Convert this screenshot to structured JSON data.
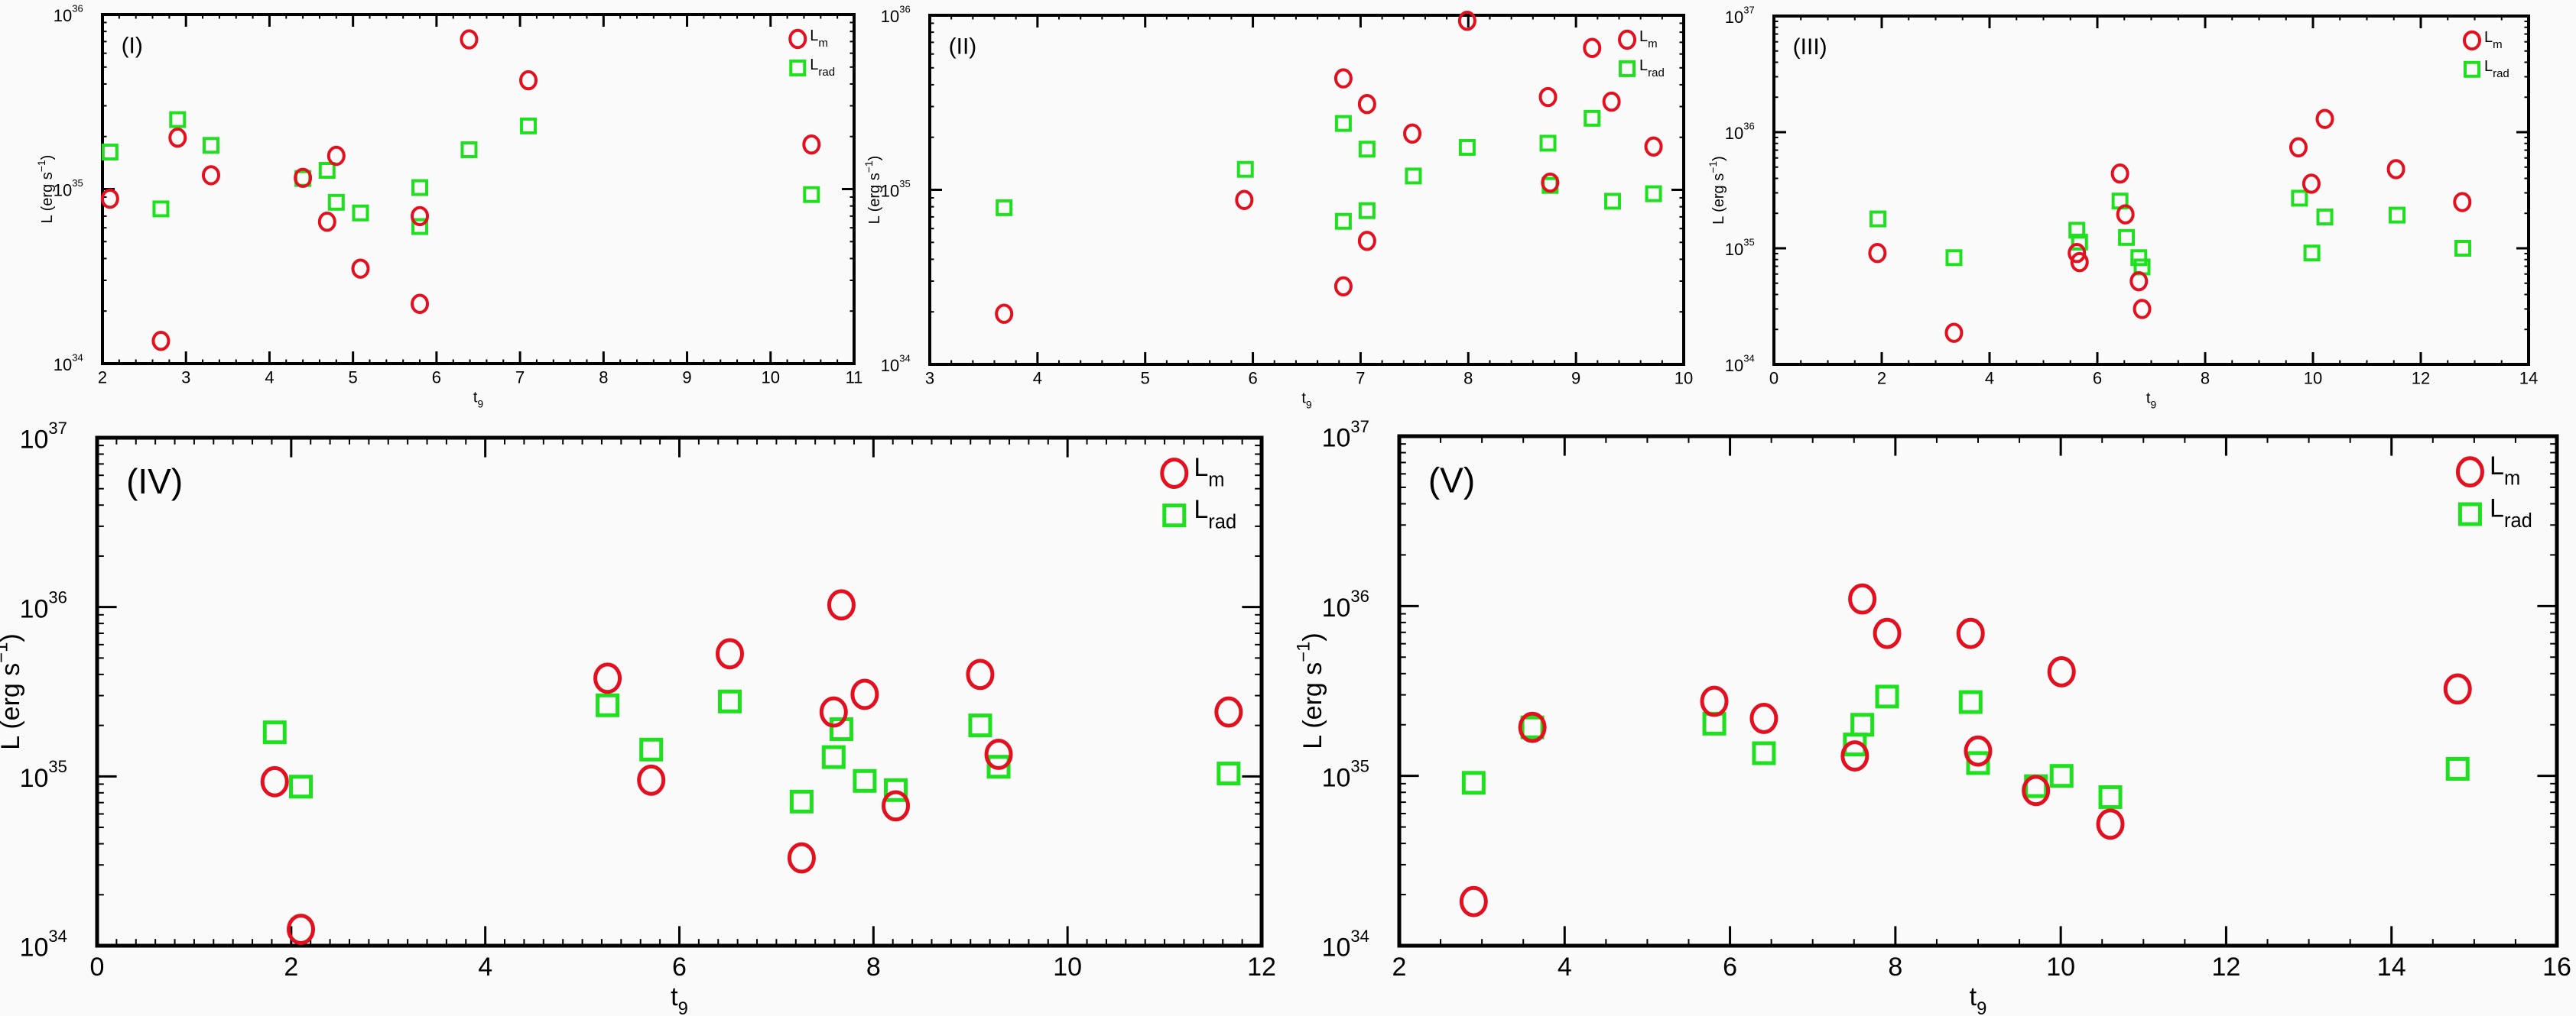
{
  "colors": {
    "Lm": "#e3101f",
    "Lrad": "#1fe01f",
    "axis": "#000000",
    "background": "#fafafa"
  },
  "chart_data": [
    {
      "type": "scatter",
      "panel_label": "(I)",
      "xlabel": "t",
      "xlabel_sub": "9",
      "ylabel": {
        "text": "L (erg s",
        "sup": "−1",
        "tail": ")"
      },
      "xlim": [
        2,
        11
      ],
      "xticks": [
        2,
        3,
        4,
        5,
        6,
        7,
        8,
        9,
        10,
        11
      ],
      "xminor": 0.2,
      "ylim_exp": [
        34,
        36
      ],
      "yscale": "log",
      "ytick_base": "10",
      "ytick_exps": [
        34,
        35,
        36
      ],
      "legend_position": "top-right",
      "series": [
        {
          "name": "L",
          "name_sub": "m",
          "marker": "circle",
          "x": [
            2.09,
            2.7,
            2.9,
            3.3,
            4.4,
            4.69,
            4.8,
            5.09,
            5.8,
            5.8,
            6.39,
            7.1,
            10.49
          ],
          "y": [
            8.8e+34,
            1.35e+34,
            1.97e+35,
            1.2e+35,
            1.16e+35,
            6.5e+34,
            1.55e+35,
            3.5e+34,
            7e+34,
            2.2e+34,
            7.2e+35,
            4.2e+35,
            1.8e+35
          ]
        },
        {
          "name": "L",
          "name_sub": "rad",
          "marker": "square",
          "x": [
            2.09,
            2.7,
            2.9,
            3.3,
            4.4,
            4.69,
            4.8,
            5.09,
            5.8,
            5.8,
            6.39,
            7.1,
            10.49
          ],
          "y": [
            1.63e+35,
            7.7e+34,
            2.5e+35,
            1.78e+35,
            1.15e+35,
            1.28e+35,
            8.4e+34,
            7.3e+34,
            1.02e+35,
            6.1e+34,
            1.68e+35,
            2.3e+35,
            9.3e+34
          ]
        }
      ]
    },
    {
      "type": "scatter",
      "panel_label": "(II)",
      "xlabel": "t",
      "xlabel_sub": "9",
      "ylabel": {
        "text": "L (erg s",
        "sup": "−1",
        "tail": ")"
      },
      "xlim": [
        3,
        10
      ],
      "xticks": [
        3,
        4,
        5,
        6,
        7,
        8,
        9,
        10
      ],
      "xminor": 0.2,
      "ylim_exp": [
        34,
        36
      ],
      "yscale": "log",
      "ytick_base": "10",
      "ytick_exps": [
        34,
        35,
        36
      ],
      "legend_position": "top-right",
      "series": [
        {
          "name": "L",
          "name_sub": "m",
          "marker": "circle",
          "x": [
            3.69,
            5.92,
            6.84,
            6.84,
            7.06,
            7.06,
            7.48,
            7.99,
            8.74,
            8.76,
            9.15,
            9.33,
            9.72
          ],
          "y": [
            1.95e+34,
            8.75e+34,
            4.35e+35,
            2.8e+34,
            3.1e+35,
            5.1e+34,
            2.1e+35,
            9.3e+35,
            3.4e+35,
            1.1e+35,
            6.5e+35,
            3.2e+35,
            1.77e+35
          ]
        },
        {
          "name": "L",
          "name_sub": "rad",
          "marker": "square",
          "x": [
            3.69,
            5.93,
            6.84,
            6.84,
            7.06,
            7.06,
            7.49,
            7.99,
            8.74,
            8.76,
            9.15,
            9.34,
            9.72
          ],
          "y": [
            7.9e+34,
            1.31e+35,
            2.4e+35,
            6.6e+34,
            1.71e+35,
            7.6e+34,
            1.2e+35,
            1.75e+35,
            1.85e+35,
            1.06e+35,
            2.57e+35,
            8.6e+34,
            9.5e+34
          ]
        }
      ]
    },
    {
      "type": "scatter",
      "panel_label": "(III)",
      "xlabel": "t",
      "xlabel_sub": "9",
      "ylabel": {
        "text": "L (erg s",
        "sup": "−1",
        "tail": ")"
      },
      "xlim": [
        0,
        14
      ],
      "xticks": [
        0,
        2,
        4,
        6,
        8,
        10,
        12,
        14
      ],
      "xminor": 0.5,
      "ylim_exp": [
        34,
        37
      ],
      "yscale": "log",
      "ytick_base": "10",
      "ytick_exps": [
        34,
        35,
        36,
        37
      ],
      "legend_position": "top-right",
      "series": [
        {
          "name": "L",
          "name_sub": "m",
          "marker": "circle",
          "x": [
            1.92,
            3.34,
            5.62,
            5.67,
            6.42,
            6.52,
            6.77,
            6.83,
            9.73,
            9.97,
            10.22,
            11.54,
            12.77
          ],
          "y": [
            9.1e+34,
            1.87e+34,
            9.1e+34,
            7.6e+34,
            4.4e+35,
            1.96e+35,
            5.2e+34,
            3e+34,
            7.4e+35,
            3.6e+35,
            1.3e+36,
            4.8e+35,
            2.5e+35
          ]
        },
        {
          "name": "L",
          "name_sub": "rad",
          "marker": "square",
          "x": [
            1.93,
            3.34,
            5.62,
            5.67,
            6.42,
            6.54,
            6.77,
            6.83,
            9.75,
            9.98,
            10.22,
            11.56,
            12.78
          ],
          "y": [
            1.79e+35,
            8.3e+34,
            1.43e+35,
            1.13e+35,
            2.55e+35,
            1.24e+35,
            8.3e+34,
            6.9e+34,
            2.7e+35,
            9.1e+34,
            1.86e+35,
            1.93e+35,
            1e+35
          ]
        }
      ]
    },
    {
      "type": "scatter",
      "panel_label": "(IV)",
      "xlabel": "t",
      "xlabel_sub": "9",
      "ylabel": {
        "text": "L (erg s",
        "sup": "−1",
        "tail": ")"
      },
      "xlim": [
        0,
        12
      ],
      "xticks": [
        0,
        2,
        4,
        6,
        8,
        10,
        12
      ],
      "xminor": 0.2,
      "ylim_exp": [
        34,
        37
      ],
      "yscale": "log",
      "ytick_base": "10",
      "ytick_exps": [
        34,
        35,
        36,
        37
      ],
      "legend_position": "top-right",
      "series": [
        {
          "name": "L",
          "name_sub": "m",
          "marker": "circle",
          "x": [
            1.83,
            2.1,
            5.26,
            5.71,
            6.52,
            7.26,
            7.59,
            7.67,
            7.91,
            8.23,
            9.1,
            9.29,
            11.66
          ],
          "y": [
            9.3e+34,
            1.25e+34,
            3.8e+35,
            9.5e+34,
            5.3e+35,
            3.3e+34,
            2.4e+35,
            1.03e+36,
            3.05e+35,
            6.7e+34,
            4e+35,
            1.35e+35,
            2.4e+35
          ]
        },
        {
          "name": "L",
          "name_sub": "rad",
          "marker": "square",
          "x": [
            1.83,
            2.1,
            5.26,
            5.71,
            6.52,
            7.26,
            7.59,
            7.67,
            7.91,
            8.23,
            9.1,
            9.29,
            11.66
          ],
          "y": [
            1.82e+35,
            8.7e+34,
            2.63e+35,
            1.44e+35,
            2.77e+35,
            7.1e+34,
            1.3e+35,
            1.9e+35,
            9.4e+34,
            8.3e+34,
            2e+35,
            1.14e+35,
            1.04e+35
          ]
        }
      ]
    },
    {
      "type": "scatter",
      "panel_label": "(V)",
      "xlabel": "t",
      "xlabel_sub": "9",
      "ylabel": {
        "text": "L (erg s",
        "sup": "−1",
        "tail": ")"
      },
      "xlim": [
        2,
        16
      ],
      "xticks": [
        2,
        4,
        6,
        8,
        10,
        12,
        14,
        16
      ],
      "xminor": 0.5,
      "ylim_exp": [
        34,
        37
      ],
      "yscale": "log",
      "ytick_base": "10",
      "ytick_exps": [
        34,
        35,
        36,
        37
      ],
      "legend_position": "top-right",
      "series": [
        {
          "name": "L",
          "name_sub": "m",
          "marker": "circle",
          "x": [
            2.9,
            3.61,
            5.81,
            6.41,
            7.51,
            7.6,
            7.9,
            8.91,
            9.0,
            9.7,
            10.01,
            10.6,
            14.8
          ],
          "y": [
            1.82e+34,
            1.93e+35,
            2.75e+35,
            2.18e+35,
            1.31e+35,
            1.1e+36,
            6.9e+35,
            6.9e+35,
            1.4e+35,
            8.2e+34,
            4.1e+35,
            5.2e+34,
            3.25e+35
          ]
        },
        {
          "name": "L",
          "name_sub": "rad",
          "marker": "square",
          "x": [
            2.9,
            3.61,
            5.81,
            6.41,
            7.51,
            7.6,
            7.9,
            8.91,
            9.0,
            9.7,
            10.01,
            10.6,
            14.8
          ],
          "y": [
            9.1e+34,
            1.93e+35,
            2.03e+35,
            1.36e+35,
            1.53e+35,
            2e+35,
            2.93e+35,
            2.72e+35,
            1.19e+35,
            8.7e+34,
            1e+35,
            7.5e+34,
            1.1e+35
          ]
        }
      ]
    }
  ]
}
